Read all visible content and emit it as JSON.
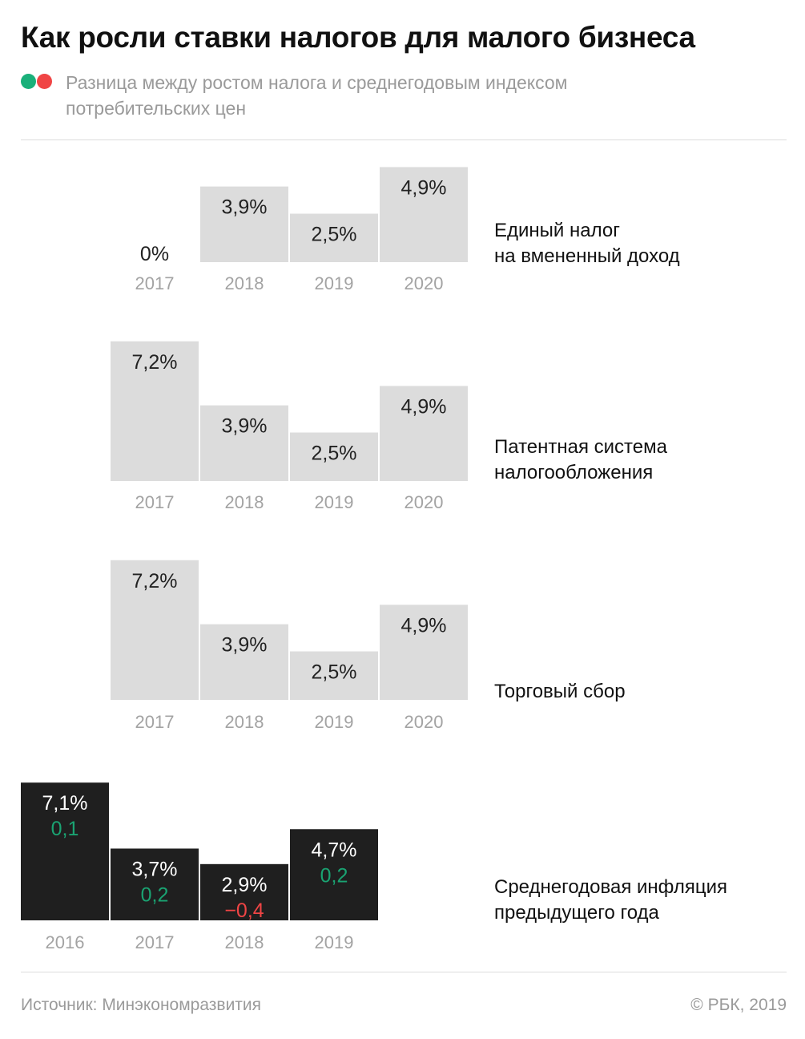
{
  "title": "Как росли ставки налогов для малого бизнеса",
  "subtitle": "Разница между ростом налога и среднегодовым индексом потребительских цен",
  "colors": {
    "bar_tax": "#dcdcdc",
    "bar_inflation": "#1f1f1f",
    "positive": "#1aa372",
    "negative": "#f04545",
    "legend_green": "#1ab07a",
    "legend_red": "#f04545"
  },
  "source": "Источник: Минэкономразвития",
  "copyright": "© РБК, 2019",
  "chart_data": [
    {
      "type": "bar",
      "label": "Единый налог\nна вмененный доход",
      "categories": [
        "2017",
        "2018",
        "2019",
        "2020"
      ],
      "values": [
        0,
        3.9,
        2.5,
        4.9
      ],
      "value_labels": [
        "0%",
        "3,9%",
        "2,5%",
        "4,9%"
      ]
    },
    {
      "type": "bar",
      "label": "Патентная система\nналогообложения",
      "categories": [
        "2017",
        "2018",
        "2019",
        "2020"
      ],
      "values": [
        7.2,
        3.9,
        2.5,
        4.9
      ],
      "value_labels": [
        "7,2%",
        "3,9%",
        "2,5%",
        "4,9%"
      ]
    },
    {
      "type": "bar",
      "label": "Торговый сбор",
      "categories": [
        "2017",
        "2018",
        "2019",
        "2020"
      ],
      "values": [
        7.2,
        3.9,
        2.5,
        4.9
      ],
      "value_labels": [
        "7,2%",
        "3,9%",
        "2,5%",
        "4,9%"
      ]
    },
    {
      "type": "bar",
      "label": "Среднегодовая инфляция\nпредыдущего года",
      "categories": [
        "2016",
        "2017",
        "2018",
        "2019"
      ],
      "values": [
        7.1,
        3.7,
        2.9,
        4.7
      ],
      "value_labels": [
        "7,1%",
        "3,7%",
        "2,9%",
        "4,7%"
      ],
      "differences": [
        0.1,
        0.2,
        -0.4,
        0.2
      ],
      "difference_labels": [
        "0,1",
        "0,2",
        "−0,4",
        "0,2"
      ]
    }
  ]
}
